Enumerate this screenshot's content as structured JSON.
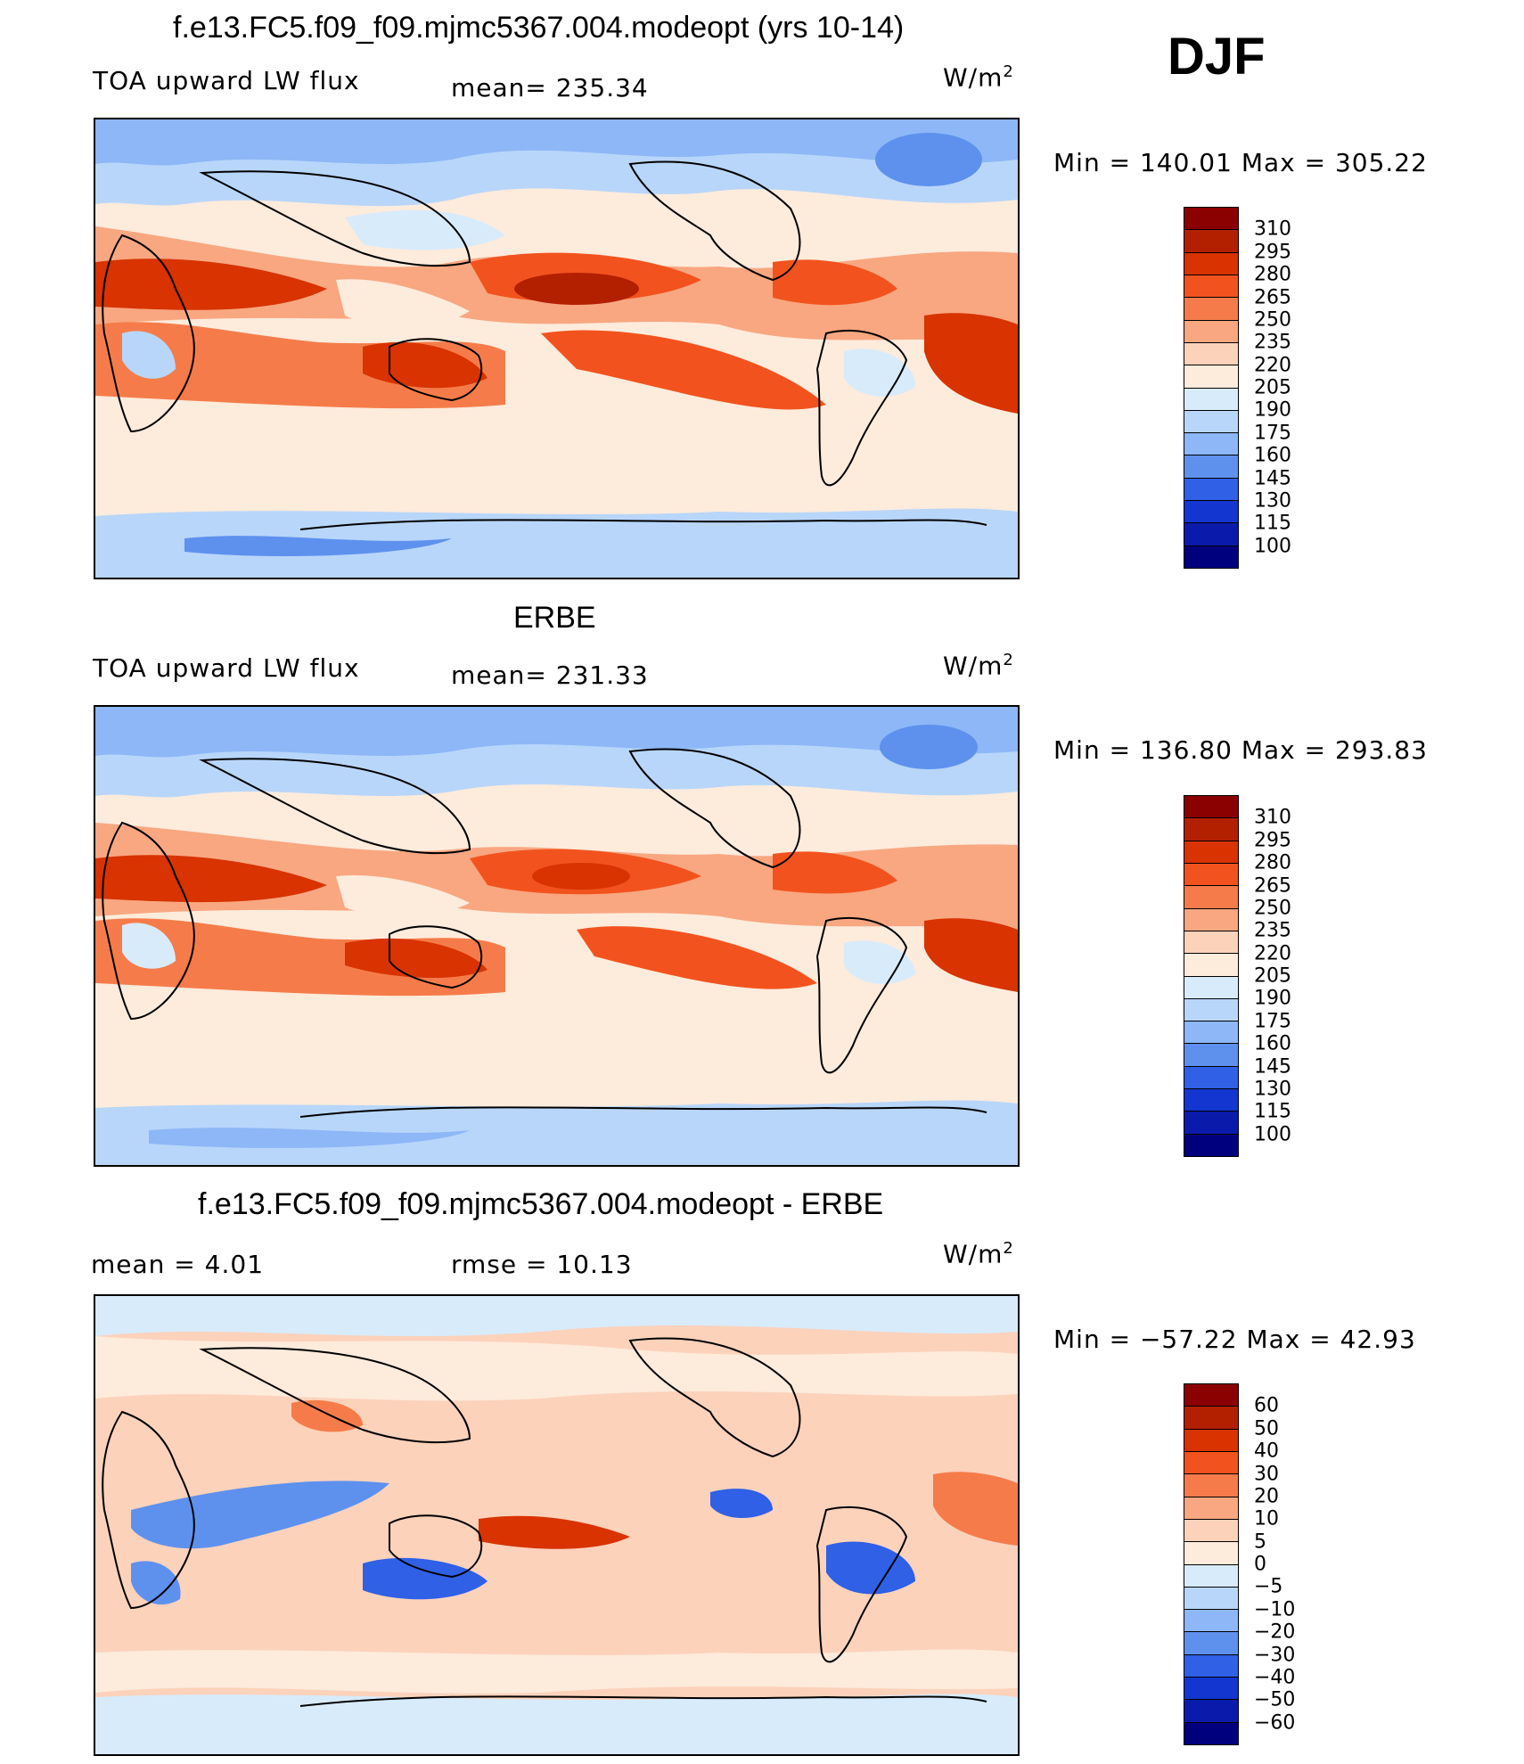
{
  "season": "DJF",
  "panels": [
    {
      "title": "f.e13.FC5.f09_f09.mjmc5367.004.modeopt (yrs 10-14)",
      "left_label": "TOA upward LW flux",
      "center_label": "mean=  235.34",
      "unit": "W/m",
      "unit_sup": "2",
      "minmax": "Min  =  140.01  Max  =  305.22",
      "map_name": "model-map",
      "colorbar": {
        "labels": [
          "310",
          "295",
          "280",
          "265",
          "250",
          "235",
          "220",
          "205",
          "190",
          "175",
          "160",
          "145",
          "130",
          "115",
          "100"
        ],
        "colors": [
          "#8b0000",
          "#b32000",
          "#d83300",
          "#f2531e",
          "#f57c4a",
          "#f8a781",
          "#fcd2bb",
          "#fdebdc",
          "#d8ebfb",
          "#b8d6fa",
          "#8db7f6",
          "#5e91ee",
          "#2f60e6",
          "#1236cf",
          "#0a1aaa",
          "#00007e"
        ]
      }
    },
    {
      "title": "ERBE",
      "left_label": "TOA upward LW flux",
      "center_label": "mean=  231.33",
      "unit": "W/m",
      "unit_sup": "2",
      "minmax": "Min  =  136.80  Max  =  293.83",
      "map_name": "erbe-map",
      "colorbar": {
        "labels": [
          "310",
          "295",
          "280",
          "265",
          "250",
          "235",
          "220",
          "205",
          "190",
          "175",
          "160",
          "145",
          "130",
          "115",
          "100"
        ],
        "colors": [
          "#8b0000",
          "#b32000",
          "#d83300",
          "#f2531e",
          "#f57c4a",
          "#f8a781",
          "#fcd2bb",
          "#fdebdc",
          "#d8ebfb",
          "#b8d6fa",
          "#8db7f6",
          "#5e91ee",
          "#2f60e6",
          "#1236cf",
          "#0a1aaa",
          "#00007e"
        ]
      }
    },
    {
      "title": "f.e13.FC5.f09_f09.mjmc5367.004.modeopt - ERBE",
      "left_label": "mean  =     4.01",
      "center_label": "rmse  =    10.13",
      "unit": "W/m",
      "unit_sup": "2",
      "minmax": "Min  =  −57.22  Max  =    42.93",
      "map_name": "difference-map",
      "colorbar": {
        "labels": [
          "60",
          "50",
          "40",
          "30",
          "20",
          "10",
          "5",
          "0",
          "−5",
          "−10",
          "−20",
          "−30",
          "−40",
          "−50",
          "−60"
        ],
        "colors": [
          "#8b0000",
          "#b32000",
          "#d83300",
          "#f2531e",
          "#f57c4a",
          "#f8a781",
          "#fcd2bb",
          "#fdebdc",
          "#d8ebfb",
          "#b8d6fa",
          "#8db7f6",
          "#5e91ee",
          "#2f60e6",
          "#1236cf",
          "#0a1aaa",
          "#00007e"
        ]
      }
    }
  ]
}
